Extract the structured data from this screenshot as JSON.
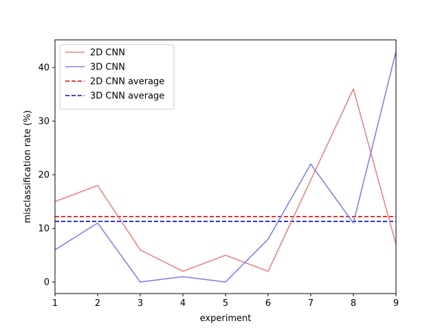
{
  "chart_data": {
    "type": "line",
    "title": "",
    "xlabel": "experiment",
    "ylabel": "misclassification rate (%)",
    "xlim": [
      1,
      9
    ],
    "ylim": [
      -2.15,
      45.15
    ],
    "xticks": [
      1,
      2,
      3,
      4,
      5,
      6,
      7,
      8,
      9
    ],
    "yticks": [
      0,
      10,
      20,
      30,
      40
    ],
    "grid": false,
    "legend_position": "top-left",
    "x": [
      1,
      2,
      3,
      4,
      5,
      6,
      7,
      8,
      9
    ],
    "series": [
      {
        "name": "2D CNN",
        "values": [
          15,
          18,
          6,
          2,
          5,
          2,
          19,
          36,
          7
        ],
        "color": "#f08080",
        "style": "solid"
      },
      {
        "name": "3D CNN",
        "values": [
          6,
          11,
          0,
          1,
          0,
          8,
          22,
          11,
          43
        ],
        "color": "#8080f0",
        "style": "solid"
      }
    ],
    "reference_lines": [
      {
        "name": "2D CNN average",
        "y": 12.2,
        "color": "#dd0000",
        "style": "dashed"
      },
      {
        "name": "3D CNN average",
        "y": 11.3,
        "color": "#0000cc",
        "style": "dashed"
      }
    ]
  }
}
